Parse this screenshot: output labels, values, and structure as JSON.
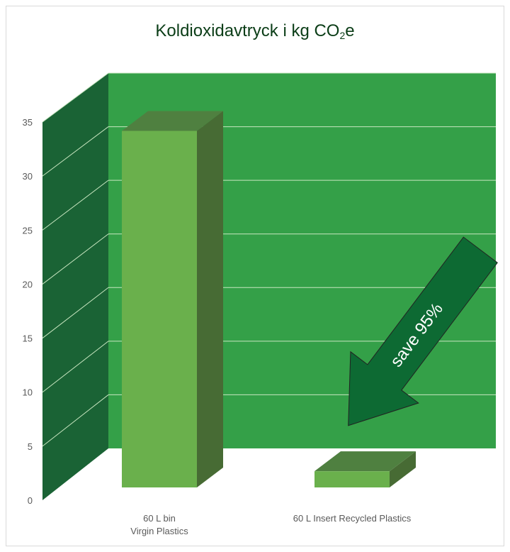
{
  "chart_data": {
    "type": "bar",
    "title_main": "Koldioxidavtryck i kg CO",
    "title_sub": "2",
    "title_end": "e",
    "categories": [
      {
        "line1": "60 L bin",
        "line2": "Virgin Plastics"
      },
      {
        "line1": "60 L Insert Recycled Plastics",
        "line2": ""
      }
    ],
    "values": [
      33,
      1.5
    ],
    "ylim": [
      0,
      35
    ],
    "yticks": [
      0,
      5,
      10,
      15,
      20,
      25,
      30,
      35
    ],
    "grid": true,
    "annotation": "save 95%",
    "colors": {
      "back_wall": "#34a048",
      "side_wall": "#1a6335",
      "bar_front": "#6ab04c",
      "bar_top": "#4f8040",
      "bar_side": "#476b34",
      "arrow": "#0d6a33",
      "gridline": "#c8e6c0"
    }
  }
}
